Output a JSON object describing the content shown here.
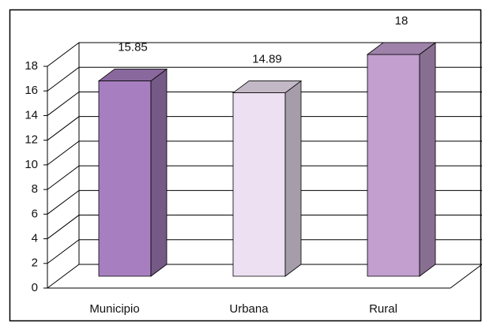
{
  "chart_data": {
    "type": "bar3d",
    "categories": [
      "Municipio",
      "Urbana",
      "Rural"
    ],
    "values": [
      15.85,
      14.89,
      18
    ],
    "colors": [
      "#a77fc0",
      "#ece0f2",
      "#c29fcf"
    ],
    "ylim": [
      0,
      18
    ],
    "yticks": [
      0,
      2,
      4,
      6,
      8,
      10,
      12,
      14,
      16,
      18
    ],
    "grid": true
  }
}
